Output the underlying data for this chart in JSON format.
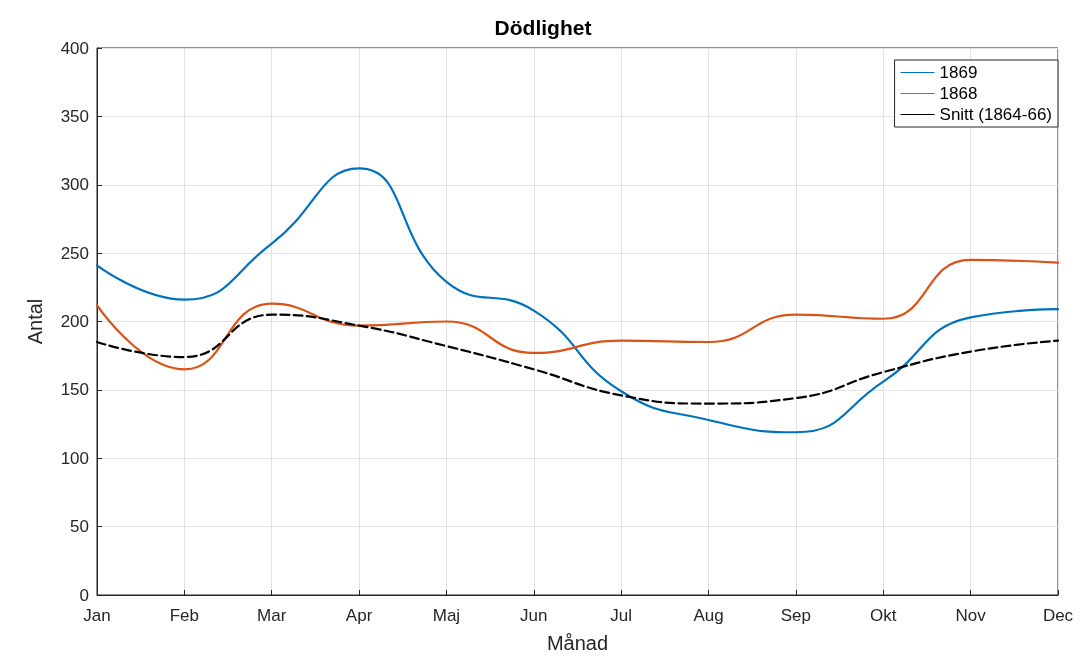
{
  "chart_data": {
    "type": "line",
    "title": "Dödlighet",
    "xlabel": "Månad",
    "ylabel": "Antal",
    "categories": [
      "Jan",
      "Feb",
      "Mar",
      "Apr",
      "Maj",
      "Jun",
      "Jul",
      "Aug",
      "Sep",
      "Okt",
      "Nov",
      "Dec"
    ],
    "series": [
      {
        "name": "1869",
        "color": "#0072bd",
        "values": [
          241,
          216,
          257,
          312,
          229,
          208,
          149,
          128,
          119,
          156,
          203,
          209
        ]
      },
      {
        "name": "1868",
        "color": "#d95319",
        "values": [
          212,
          165,
          213,
          197,
          200,
          177,
          186,
          185,
          205,
          202,
          245,
          243
        ]
      },
      {
        "name": "Snitt (1864-66)",
        "color": "#000000",
        "line_style": "dashed",
        "values": [
          185,
          174,
          205,
          197,
          182,
          165,
          146,
          140,
          144,
          163,
          178,
          186
        ]
      }
    ],
    "ylim": [
      0,
      400
    ],
    "yticks": [
      0,
      50,
      100,
      150,
      200,
      250,
      300,
      350,
      400
    ],
    "grid": true,
    "legend": "top right",
    "marker": "none",
    "line_style": "solid"
  }
}
